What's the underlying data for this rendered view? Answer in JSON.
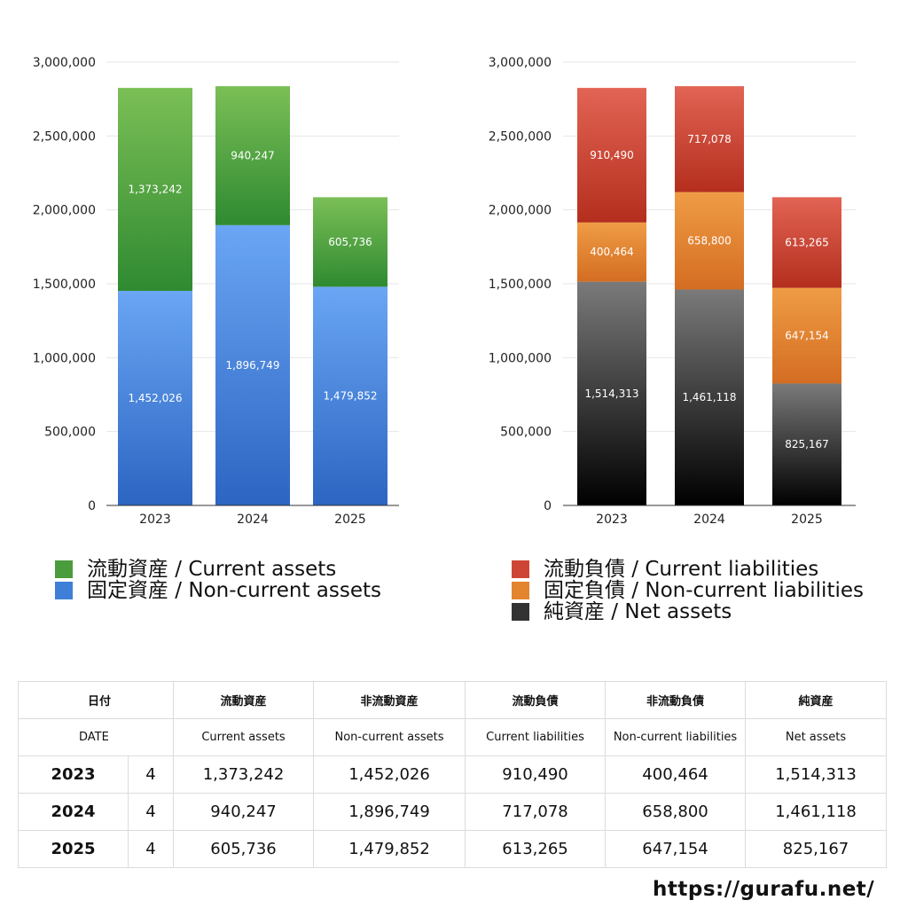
{
  "chart_data": [
    {
      "type": "bar",
      "stacked": true,
      "categories": [
        "2023",
        "2024",
        "2025"
      ],
      "ylim": [
        0,
        3000000
      ],
      "yticks": [
        0,
        500000,
        1000000,
        1500000,
        2000000,
        2500000,
        3000000
      ],
      "ytick_labels": [
        "0",
        "500,000",
        "1,000,000",
        "1,500,000",
        "2,000,000",
        "2,500,000",
        "3,000,000"
      ],
      "grid": true,
      "legend_position": "bottom",
      "series": [
        {
          "name": "固定資産 / Non-current assets",
          "values": [
            1452026,
            1896749,
            1479852
          ],
          "labels": [
            "1,452,026",
            "1,896,749",
            "1,479,852"
          ],
          "colors": [
            "#6aa6f4",
            "#2c65c2"
          ]
        },
        {
          "name": "流動資産 / Current assets",
          "values": [
            1373242,
            940247,
            605736
          ],
          "labels": [
            "1,373,242",
            "940,247",
            "605,736"
          ],
          "colors": [
            "#7bbf56",
            "#2f8a31"
          ]
        }
      ]
    },
    {
      "type": "bar",
      "stacked": true,
      "categories": [
        "2023",
        "2024",
        "2025"
      ],
      "ylim": [
        0,
        3000000
      ],
      "yticks": [
        0,
        500000,
        1000000,
        1500000,
        2000000,
        2500000,
        3000000
      ],
      "ytick_labels": [
        "0",
        "500,000",
        "1,000,000",
        "1,500,000",
        "2,000,000",
        "2,500,000",
        "3,000,000"
      ],
      "grid": true,
      "legend_position": "bottom",
      "series": [
        {
          "name": "純資産 / Net assets",
          "values": [
            1514313,
            1461118,
            825167
          ],
          "labels": [
            "1,514,313",
            "1,461,118",
            "825,167"
          ],
          "colors": [
            "#7a7a7a",
            "#000000"
          ]
        },
        {
          "name": "固定負債 / Non-current liabilities",
          "values": [
            400464,
            658800,
            647154
          ],
          "labels": [
            "400,464",
            "658,800",
            "647,154"
          ],
          "colors": [
            "#ef9c45",
            "#d46d22"
          ]
        },
        {
          "name": "流動負債 / Current liabilities",
          "values": [
            910490,
            717078,
            613265
          ],
          "labels": [
            "910,490",
            "717,078",
            "613,265"
          ],
          "colors": [
            "#e26454",
            "#b42e1d"
          ]
        }
      ]
    }
  ],
  "legend_left": [
    {
      "label": "流動資産 / Current assets",
      "color": "#4a9c3c"
    },
    {
      "label": "固定資産 / Non-current assets",
      "color": "#3f7fd8"
    }
  ],
  "legend_right": [
    {
      "label": "流動負債 / Current liabilities",
      "color": "#cf4535"
    },
    {
      "label": "固定負債 / Non-current liabilities",
      "color": "#e3852f"
    },
    {
      "label": "純資産 / Net assets",
      "color": "#333333"
    }
  ],
  "table": {
    "header_jp": [
      "日付",
      "",
      "流動資産",
      "非流動資産",
      "流動負債",
      "非流動負債",
      "純資産"
    ],
    "header_en": [
      "DATE",
      "",
      "Current assets",
      "Non-current assets",
      "Current liabilities",
      "Non-current liabilities",
      "Net assets"
    ],
    "rows": [
      [
        "2023",
        "4",
        "1,373,242",
        "1,452,026",
        "910,490",
        "400,464",
        "1,514,313"
      ],
      [
        "2024",
        "4",
        "940,247",
        "1,896,749",
        "717,078",
        "658,800",
        "1,461,118"
      ],
      [
        "2025",
        "4",
        "605,736",
        "1,479,852",
        "613,265",
        "647,154",
        "825,167"
      ]
    ]
  },
  "site": "https://gurafu.net/"
}
